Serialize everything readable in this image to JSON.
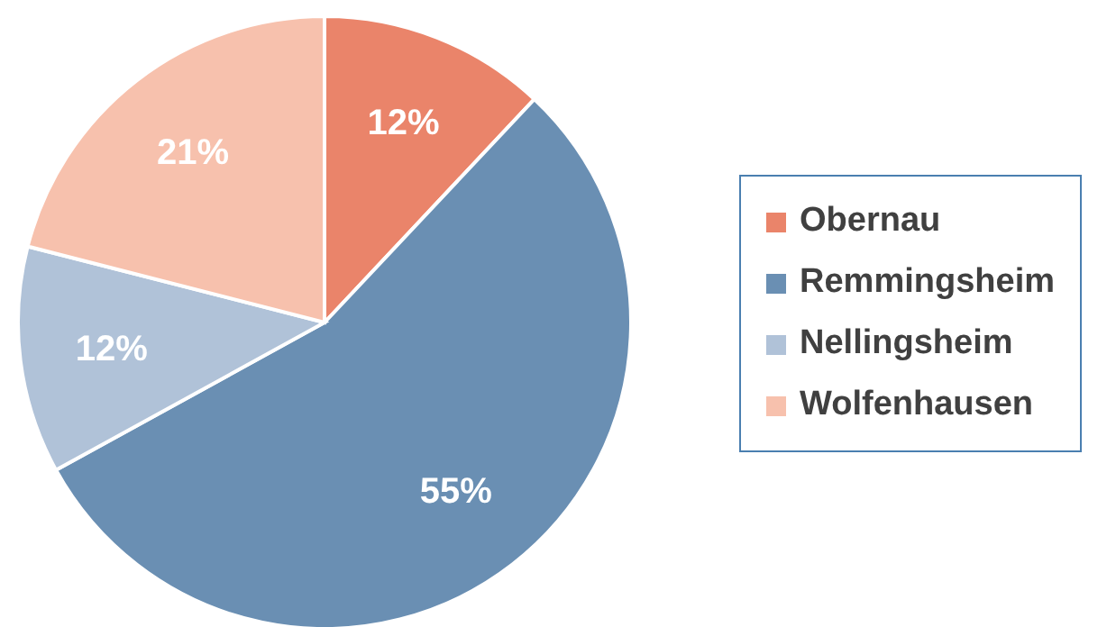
{
  "chart_data": {
    "type": "pie",
    "categories": [
      "Obernau",
      "Remmingsheim",
      "Nellingsheim",
      "Wolfenhausen"
    ],
    "values": [
      12,
      55,
      12,
      21
    ],
    "colors": [
      "#ea846a",
      "#6a8fb3",
      "#b0c2d8",
      "#f7c1ad"
    ],
    "value_labels": [
      "12%",
      "55%",
      "12%",
      "21%"
    ],
    "legend": "right"
  }
}
